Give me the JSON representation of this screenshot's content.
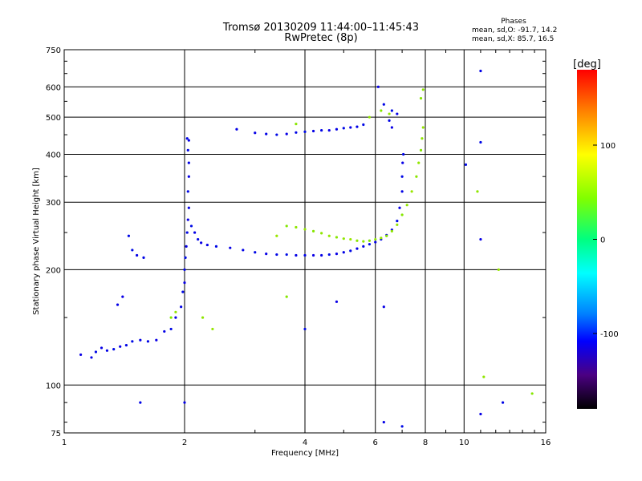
{
  "chart_data": {
    "type": "scatter",
    "title": "Tromsø 20130209 11:44:00–11:45:43",
    "subtitle": "RwPretec (8p)",
    "xlabel": "Frequency [MHz]",
    "ylabel": "Stationary phase Virtual Height [km]",
    "x_scale": "log",
    "y_scale": "log",
    "xlim": [
      1,
      16
    ],
    "ylim": [
      75,
      750
    ],
    "x_ticks": [
      1,
      2,
      4,
      6,
      8,
      10,
      16
    ],
    "y_ticks": [
      75,
      100,
      200,
      300,
      400,
      500,
      600,
      750
    ],
    "grid": true,
    "legend": {
      "header": "Phases",
      "lines": [
        "mean, sd,O: -91.7, 14.2",
        "mean, sd,X:  85.7, 16.5"
      ]
    },
    "colorbar": {
      "label": "[deg]",
      "ticks": [
        100,
        0,
        -100
      ],
      "range": [
        -180,
        180
      ]
    },
    "series": [
      {
        "name": "O",
        "phase": -92,
        "points": [
          [
            1.1,
            120
          ],
          [
            1.17,
            118
          ],
          [
            1.2,
            122
          ],
          [
            1.24,
            125
          ],
          [
            1.28,
            123
          ],
          [
            1.33,
            124
          ],
          [
            1.38,
            126
          ],
          [
            1.43,
            127
          ],
          [
            1.48,
            130
          ],
          [
            1.55,
            131
          ],
          [
            1.62,
            130
          ],
          [
            1.7,
            131
          ],
          [
            1.78,
            138
          ],
          [
            1.85,
            140
          ],
          [
            1.9,
            150
          ],
          [
            1.96,
            160
          ],
          [
            1.98,
            175
          ],
          [
            2.0,
            185
          ],
          [
            2.0,
            200
          ],
          [
            2.01,
            215
          ],
          [
            2.02,
            230
          ],
          [
            2.03,
            250
          ],
          [
            2.04,
            270
          ],
          [
            2.05,
            290
          ],
          [
            2.04,
            320
          ],
          [
            2.05,
            350
          ],
          [
            2.05,
            380
          ],
          [
            2.04,
            410
          ],
          [
            2.05,
            435
          ],
          [
            2.03,
            440
          ],
          [
            2.08,
            260
          ],
          [
            2.12,
            250
          ],
          [
            2.16,
            240
          ],
          [
            2.2,
            235
          ],
          [
            2.28,
            232
          ],
          [
            2.4,
            230
          ],
          [
            2.6,
            228
          ],
          [
            2.8,
            225
          ],
          [
            3.0,
            222
          ],
          [
            3.2,
            220
          ],
          [
            3.4,
            219
          ],
          [
            3.6,
            219
          ],
          [
            3.8,
            218
          ],
          [
            4.0,
            218
          ],
          [
            4.2,
            218
          ],
          [
            4.4,
            218
          ],
          [
            4.6,
            219
          ],
          [
            4.8,
            220
          ],
          [
            5.0,
            222
          ],
          [
            5.2,
            224
          ],
          [
            5.4,
            227
          ],
          [
            5.6,
            230
          ],
          [
            5.8,
            233
          ],
          [
            6.0,
            236
          ],
          [
            6.2,
            240
          ],
          [
            6.4,
            246
          ],
          [
            6.6,
            254
          ],
          [
            6.8,
            268
          ],
          [
            6.9,
            290
          ],
          [
            7.0,
            320
          ],
          [
            7.0,
            350
          ],
          [
            7.02,
            380
          ],
          [
            7.05,
            400
          ],
          [
            1.48,
            225
          ],
          [
            1.52,
            218
          ],
          [
            1.58,
            215
          ],
          [
            1.4,
            170
          ],
          [
            1.36,
            162
          ],
          [
            1.45,
            245
          ],
          [
            3.0,
            455
          ],
          [
            3.2,
            452
          ],
          [
            3.4,
            450
          ],
          [
            3.6,
            452
          ],
          [
            3.8,
            456
          ],
          [
            4.0,
            458
          ],
          [
            4.2,
            460
          ],
          [
            4.4,
            462
          ],
          [
            4.6,
            462
          ],
          [
            4.8,
            465
          ],
          [
            5.0,
            468
          ],
          [
            5.2,
            470
          ],
          [
            5.4,
            472
          ],
          [
            5.6,
            478
          ],
          [
            6.1,
            600
          ],
          [
            6.3,
            540
          ],
          [
            6.6,
            520
          ],
          [
            6.8,
            510
          ],
          [
            6.5,
            490
          ],
          [
            6.6,
            470
          ],
          [
            2.7,
            465
          ],
          [
            4.0,
            140
          ],
          [
            6.3,
            160
          ],
          [
            11.0,
            660
          ],
          [
            11.0,
            430
          ],
          [
            11.0,
            240
          ],
          [
            12.5,
            90
          ],
          [
            7.0,
            78
          ],
          [
            6.3,
            80
          ],
          [
            1.55,
            90
          ],
          [
            4.8,
            165
          ],
          [
            2.0,
            90
          ],
          [
            10.1,
            376
          ],
          [
            11.0,
            84
          ]
        ]
      },
      {
        "name": "X",
        "phase": 86,
        "points": [
          [
            3.6,
            260
          ],
          [
            3.8,
            258
          ],
          [
            4.0,
            255
          ],
          [
            4.2,
            252
          ],
          [
            4.4,
            249
          ],
          [
            4.6,
            245
          ],
          [
            4.8,
            243
          ],
          [
            5.0,
            241
          ],
          [
            5.2,
            240
          ],
          [
            5.4,
            238
          ],
          [
            5.6,
            237
          ],
          [
            5.8,
            238
          ],
          [
            6.0,
            240
          ],
          [
            6.2,
            242
          ],
          [
            6.4,
            245
          ],
          [
            6.6,
            252
          ],
          [
            6.8,
            262
          ],
          [
            7.0,
            278
          ],
          [
            7.2,
            295
          ],
          [
            7.4,
            320
          ],
          [
            7.6,
            350
          ],
          [
            7.7,
            380
          ],
          [
            7.8,
            410
          ],
          [
            7.85,
            440
          ],
          [
            7.9,
            470
          ],
          [
            7.8,
            560
          ],
          [
            7.9,
            590
          ],
          [
            6.5,
            510
          ],
          [
            6.2,
            520
          ],
          [
            5.8,
            500
          ],
          [
            3.4,
            245
          ],
          [
            3.8,
            480
          ],
          [
            1.9,
            155
          ],
          [
            1.85,
            150
          ],
          [
            2.22,
            150
          ],
          [
            2.35,
            140
          ],
          [
            3.6,
            170
          ],
          [
            10.8,
            320
          ],
          [
            12.2,
            200
          ],
          [
            14.8,
            95
          ],
          [
            11.2,
            105
          ]
        ]
      }
    ]
  }
}
